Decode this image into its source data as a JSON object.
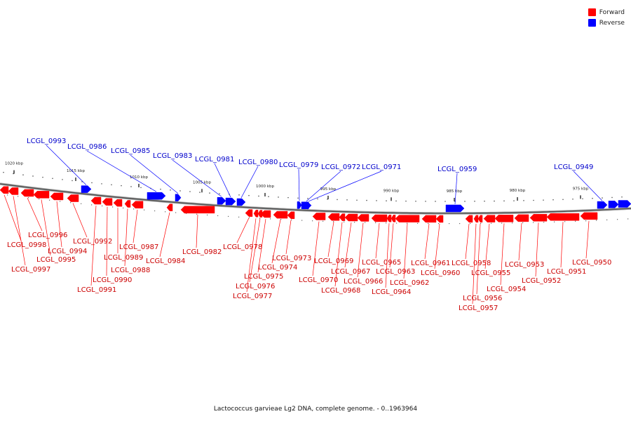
{
  "legend": {
    "forward_label": "Forward",
    "reverse_label": "Reverse",
    "forward_color": "#ff0000",
    "reverse_color": "#0000ff"
  },
  "caption": "Lactococcus garvieae Lg2 DNA, complete genome. - 0..1963964",
  "track": {
    "ticks": [
      "1020 kbp",
      "1015 kbp",
      "1010 kbp",
      "1005 kbp",
      "1000 kbp",
      "995 kbp",
      "990 kbp",
      "985 kbp",
      "980 kbp",
      "975 kbp"
    ]
  },
  "reverse_genes": [
    "LCGL_0993",
    "LCGL_0986",
    "LCGL_0985",
    "LCGL_0983",
    "LCGL_0981",
    "LCGL_0980",
    "LCGL_0979",
    "LCGL_0972",
    "LCGL_0971",
    "LCGL_0959",
    "LCGL_0949"
  ],
  "forward_genes": [
    "LCGL_0998",
    "LCGL_0997",
    "LCGL_0996",
    "LCGL_0995",
    "LCGL_0994",
    "LCGL_0992",
    "LCGL_0991",
    "LCGL_0990",
    "LCGL_0989",
    "LCGL_0988",
    "LCGL_0987",
    "LCGL_0984",
    "LCGL_0982",
    "LCGL_0978",
    "LCGL_0977",
    "LCGL_0976",
    "LCGL_0975",
    "LCGL_0974",
    "LCGL_0973",
    "LCGL_0970",
    "LCGL_0969",
    "LCGL_0968",
    "LCGL_0967",
    "LCGL_0966",
    "LCGL_0965",
    "LCGL_0964",
    "LCGL_0963",
    "LCGL_0962",
    "LCGL_0961",
    "LCGL_0960",
    "LCGL_0958",
    "LCGL_0957",
    "LCGL_0956",
    "LCGL_0955",
    "LCGL_0954",
    "LCGL_0953",
    "LCGL_0952",
    "LCGL_0951",
    "LCGL_0950"
  ]
}
